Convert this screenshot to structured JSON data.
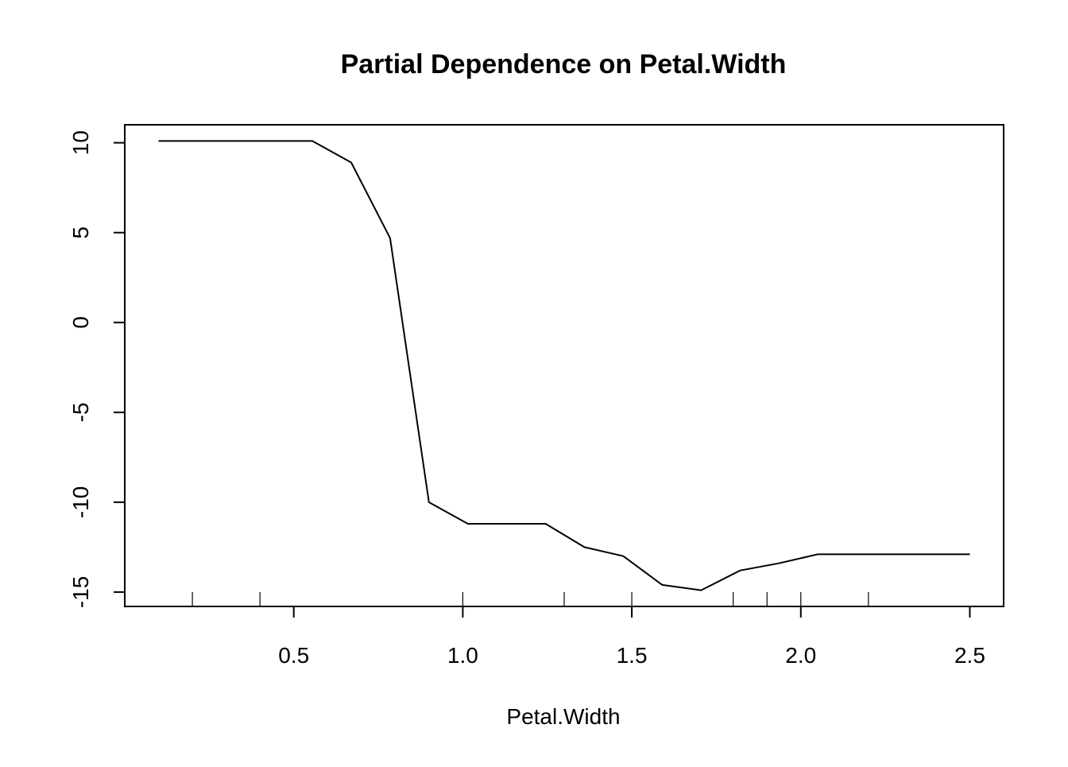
{
  "chart_data": {
    "type": "line",
    "title": "Partial Dependence on Petal.Width",
    "xlabel": "Petal.Width",
    "ylabel": "",
    "xlim": [
      0.0,
      2.6
    ],
    "ylim": [
      -15.8,
      11.0
    ],
    "x_ticks": [
      0.5,
      1.0,
      1.5,
      2.0,
      2.5
    ],
    "x_tick_labels": [
      "0.5",
      "1.0",
      "1.5",
      "2.0",
      "2.5"
    ],
    "y_ticks": [
      -15,
      -10,
      -5,
      0,
      5,
      10
    ],
    "y_tick_labels": [
      "-15",
      "-10",
      "-5",
      "0",
      "5",
      "10"
    ],
    "grid": false,
    "legend": "none",
    "line_color": "#000000",
    "series": [
      {
        "x": [
          0.1,
          0.555,
          0.67,
          0.785,
          0.9,
          1.015,
          1.13,
          1.245,
          1.36,
          1.475,
          1.59,
          1.705,
          1.82,
          1.935,
          2.05,
          2.165,
          2.28,
          2.395,
          2.5
        ],
        "values": [
          10.1,
          10.1,
          8.9,
          4.7,
          -10.0,
          -11.2,
          -11.2,
          -11.2,
          -12.5,
          -13.0,
          -14.6,
          -14.9,
          -13.8,
          -13.4,
          -12.9,
          -12.9,
          -12.9,
          -12.9,
          -12.9
        ]
      }
    ],
    "rug": [
      0.2,
      0.4,
      1.0,
      1.3,
      1.5,
      1.8,
      1.9,
      2.0,
      2.2
    ]
  }
}
